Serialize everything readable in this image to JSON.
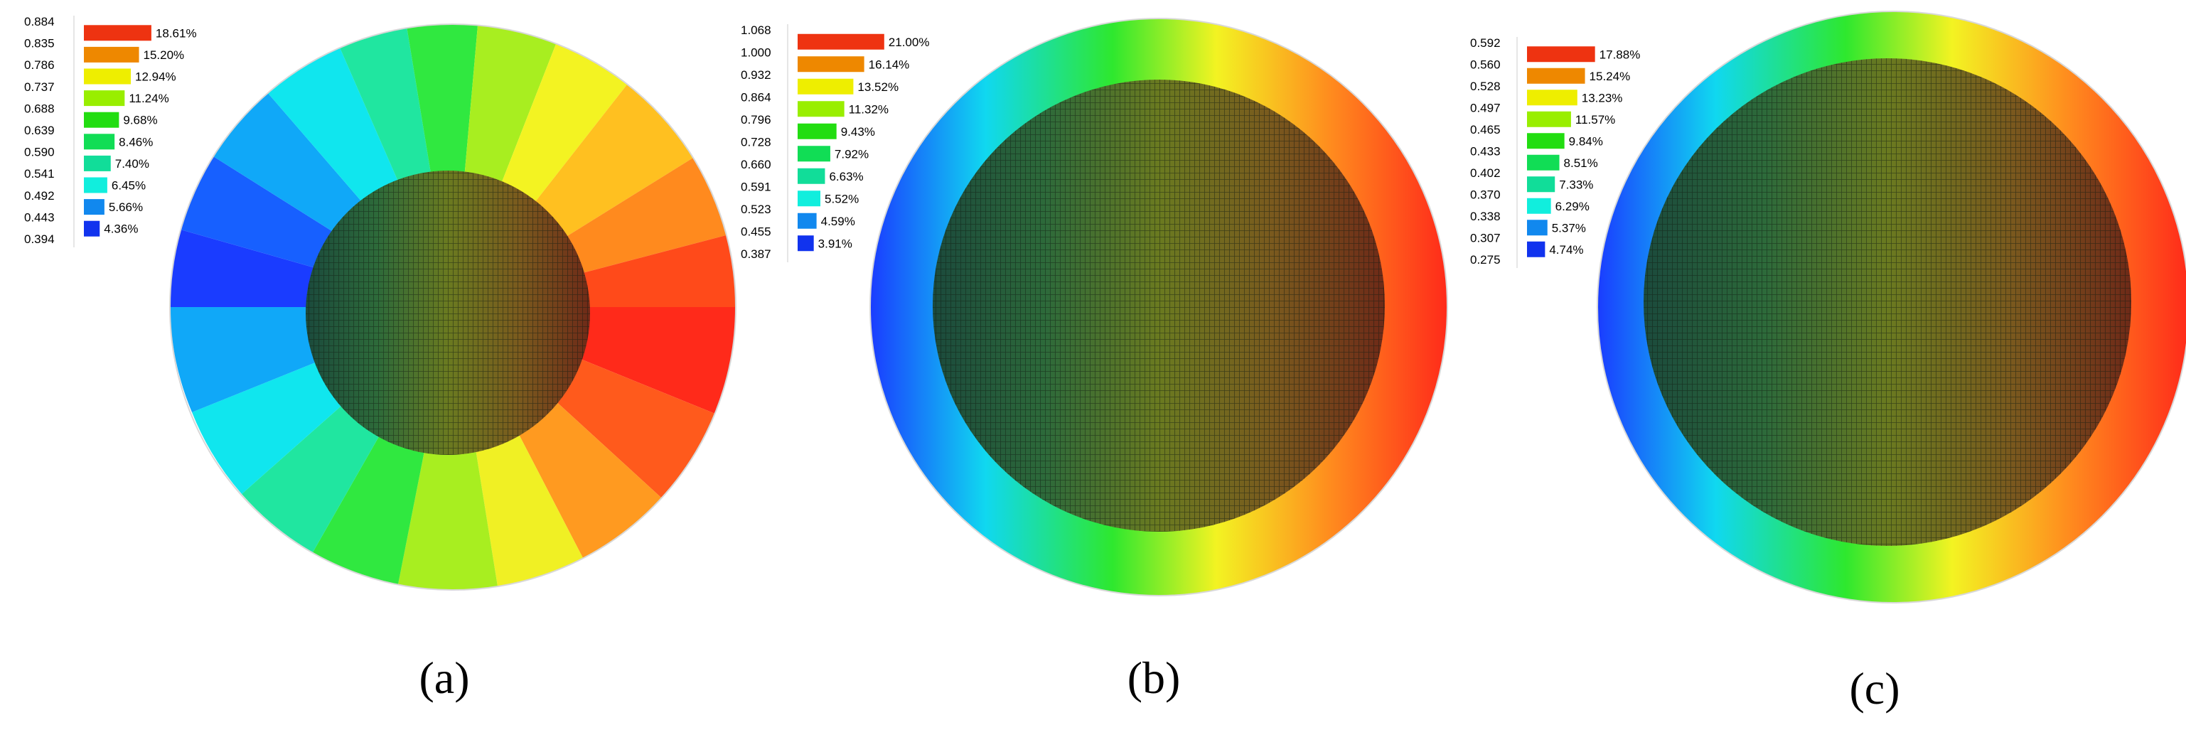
{
  "chart_data": [
    {
      "type": "heatmap",
      "caption": "(a)",
      "legend": {
        "levels": [
          "0.884",
          "0.835",
          "0.786",
          "0.737",
          "0.688",
          "0.639",
          "0.590",
          "0.541",
          "0.492",
          "0.443",
          "0.394"
        ],
        "percentages": [
          "18.61%",
          "15.20%",
          "12.94%",
          "11.24%",
          "9.68%",
          "8.46%",
          "7.40%",
          "6.45%",
          "5.66%",
          "4.36%"
        ],
        "percent_values": [
          18.61,
          15.2,
          12.94,
          11.24,
          9.68,
          8.46,
          7.4,
          6.45,
          5.66,
          4.36
        ],
        "colors": [
          "#ee3311",
          "#ee8800",
          "#eeee00",
          "#99ee00",
          "#22dd11",
          "#11dd55",
          "#11dd99",
          "#11eedd",
          "#1188ee",
          "#1133ee"
        ]
      }
    },
    {
      "type": "heatmap",
      "caption": "(b)",
      "legend": {
        "levels": [
          "1.068",
          "1.000",
          "0.932",
          "0.864",
          "0.796",
          "0.728",
          "0.660",
          "0.591",
          "0.523",
          "0.455",
          "0.387"
        ],
        "percentages": [
          "21.00%",
          "16.14%",
          "13.52%",
          "11.32%",
          "9.43%",
          "7.92%",
          "6.63%",
          "5.52%",
          "4.59%",
          "3.91%"
        ],
        "percent_values": [
          21.0,
          16.14,
          13.52,
          11.32,
          9.43,
          7.92,
          6.63,
          5.52,
          4.59,
          3.91
        ],
        "colors": [
          "#ee3311",
          "#ee8800",
          "#eeee00",
          "#99ee00",
          "#22dd11",
          "#11dd55",
          "#11dd99",
          "#11eedd",
          "#1188ee",
          "#1133ee"
        ]
      }
    },
    {
      "type": "heatmap",
      "caption": "(c)",
      "legend": {
        "levels": [
          "0.592",
          "0.560",
          "0.528",
          "0.497",
          "0.465",
          "0.433",
          "0.402",
          "0.370",
          "0.338",
          "0.307",
          "0.275"
        ],
        "percentages": [
          "17.88%",
          "15.24%",
          "13.23%",
          "11.57%",
          "9.84%",
          "8.51%",
          "7.33%",
          "6.29%",
          "5.37%",
          "4.74%"
        ],
        "percent_values": [
          17.88,
          15.24,
          13.23,
          11.57,
          9.84,
          8.51,
          7.33,
          6.29,
          5.37,
          4.74
        ],
        "colors": [
          "#ee3311",
          "#ee8800",
          "#eeee00",
          "#99ee00",
          "#22dd11",
          "#11dd55",
          "#11dd99",
          "#11eedd",
          "#1188ee",
          "#1133ee"
        ]
      }
    }
  ]
}
